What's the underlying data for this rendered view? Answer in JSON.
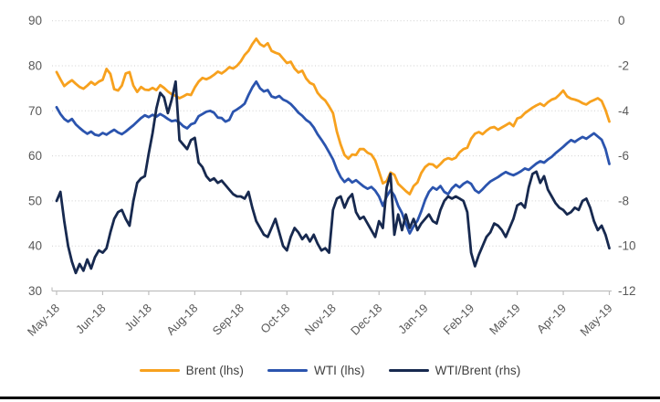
{
  "chart_data": {
    "type": "line",
    "title": "",
    "x_labels": [
      "May-18",
      "Jun-18",
      "Jul-18",
      "Aug-18",
      "Sep-18",
      "Oct-18",
      "Nov-18",
      "Dec-18",
      "Jan-19",
      "Feb-19",
      "Mar-19",
      "Apr-19",
      "May-19"
    ],
    "left_axis": {
      "ticks": [
        90,
        80,
        70,
        60,
        50,
        40,
        30
      ],
      "min": 30,
      "max": 90
    },
    "right_axis": {
      "ticks": [
        0,
        -2,
        -4,
        -6,
        -8,
        -10,
        -12
      ],
      "min": -12,
      "max": 0
    },
    "grid": "dotted-horizontal",
    "legend_position": "bottom",
    "colors": {
      "brent": "#F7A11E",
      "wti": "#2B54AE",
      "spread": "#17294F",
      "grid": "#cfcfcf",
      "axis_line": "#bfbfbf",
      "tick_text": "#595959",
      "bottom_rule": "#000000"
    },
    "series": [
      {
        "name": "Brent (lhs)",
        "axis": "left",
        "color": "#F7A11E",
        "values": [
          78.6,
          77.0,
          75.5,
          76.2,
          76.8,
          76.0,
          75.3,
          74.9,
          75.6,
          76.4,
          75.8,
          76.5,
          76.9,
          79.3,
          78.2,
          74.8,
          74.5,
          75.6,
          78.3,
          78.6,
          75.6,
          74.2,
          75.3,
          74.7,
          74.6,
          75.1,
          74.6,
          75.7,
          75.1,
          74.3,
          73.7,
          73.3,
          72.8,
          73.2,
          73.7,
          73.5,
          75.2,
          76.5,
          77.3,
          77.0,
          77.4,
          78.0,
          78.7,
          78.3,
          78.9,
          79.7,
          79.4,
          80.0,
          81.0,
          82.4,
          83.3,
          84.8,
          86.0,
          84.8,
          84.3,
          85.0,
          83.3,
          82.9,
          82.6,
          81.6,
          80.6,
          80.9,
          79.4,
          78.5,
          78.9,
          77.2,
          76.2,
          75.8,
          74.0,
          73.0,
          72.3,
          71.0,
          69.5,
          65.4,
          62.5,
          60.2,
          59.4,
          60.3,
          60.2,
          61.5,
          61.5,
          60.7,
          60.3,
          59.0,
          56.5,
          53.9,
          54.4,
          56.3,
          55.8,
          53.8,
          53.0,
          52.2,
          51.5,
          53.3,
          54.1,
          56.2,
          57.5,
          58.2,
          58.1,
          57.4,
          58.2,
          59.1,
          59.5,
          59.2,
          59.6,
          60.8,
          61.5,
          61.8,
          63.8,
          64.9,
          65.3,
          64.8,
          65.6,
          66.2,
          66.4,
          65.8,
          66.3,
          66.8,
          67.3,
          66.6,
          68.3,
          68.6,
          69.5,
          70.1,
          70.7,
          71.2,
          71.6,
          71.1,
          71.9,
          72.5,
          72.8,
          73.6,
          74.5,
          73.2,
          72.7,
          72.5,
          72.2,
          71.7,
          71.4,
          72.0,
          72.4,
          72.8,
          72.2,
          70.2,
          67.6
        ]
      },
      {
        "name": "WTI (lhs)",
        "axis": "left",
        "color": "#2B54AE",
        "values": [
          70.8,
          69.3,
          68.2,
          67.6,
          68.2,
          67.0,
          66.2,
          65.5,
          64.9,
          65.4,
          64.7,
          64.5,
          65.1,
          64.7,
          65.3,
          65.8,
          65.2,
          64.8,
          65.4,
          66.1,
          66.8,
          67.6,
          68.4,
          69.0,
          68.6,
          69.1,
          68.7,
          69.3,
          68.8,
          68.2,
          67.7,
          67.9,
          67.4,
          66.6,
          66.1,
          67.0,
          67.3,
          68.8,
          69.3,
          69.8,
          70.0,
          69.6,
          68.5,
          68.4,
          67.6,
          68.0,
          69.8,
          70.3,
          70.9,
          71.6,
          73.5,
          75.2,
          76.5,
          75.0,
          74.3,
          74.6,
          73.2,
          72.9,
          73.3,
          72.5,
          72.1,
          71.5,
          70.6,
          69.6,
          68.9,
          68.0,
          67.4,
          66.3,
          64.8,
          63.6,
          62.3,
          60.8,
          59.2,
          57.0,
          55.3,
          54.2,
          54.9,
          54.1,
          54.6,
          53.9,
          53.2,
          52.7,
          53.1,
          52.3,
          51.0,
          48.9,
          51.0,
          52.4,
          51.2,
          48.9,
          47.3,
          44.9,
          42.8,
          44.4,
          45.6,
          47.7,
          50.2,
          52.0,
          53.0,
          52.5,
          53.3,
          52.0,
          51.5,
          52.8,
          53.6,
          53.0,
          53.8,
          54.3,
          53.8,
          52.4,
          51.8,
          52.6,
          53.5,
          54.3,
          54.8,
          55.3,
          55.9,
          56.4,
          56.0,
          55.7,
          56.1,
          56.6,
          57.2,
          56.9,
          57.6,
          58.3,
          58.8,
          58.5,
          59.2,
          59.8,
          60.6,
          61.3,
          62.0,
          62.8,
          63.5,
          63.1,
          63.7,
          64.2,
          63.8,
          64.4,
          65.0,
          64.3,
          63.6,
          61.5,
          58.2
        ]
      },
      {
        "name": "WTI/Brent (rhs)",
        "axis": "right",
        "color": "#17294F",
        "values": [
          -8.0,
          -7.6,
          -8.9,
          -10.0,
          -10.7,
          -11.2,
          -10.8,
          -11.1,
          -10.6,
          -11.0,
          -10.5,
          -10.2,
          -10.3,
          -10.1,
          -9.4,
          -8.8,
          -8.5,
          -8.4,
          -8.8,
          -9.1,
          -8.0,
          -7.2,
          -7.0,
          -6.9,
          -5.9,
          -5.0,
          -3.9,
          -3.2,
          -3.4,
          -4.1,
          -3.5,
          -2.7,
          -5.3,
          -5.5,
          -5.7,
          -5.3,
          -5.2,
          -6.3,
          -6.5,
          -6.9,
          -7.1,
          -7.0,
          -7.2,
          -7.1,
          -7.3,
          -7.5,
          -7.7,
          -7.8,
          -7.8,
          -7.9,
          -7.6,
          -8.3,
          -8.9,
          -9.2,
          -9.5,
          -9.6,
          -9.2,
          -8.8,
          -9.4,
          -10.0,
          -10.2,
          -9.6,
          -9.2,
          -9.4,
          -9.7,
          -9.5,
          -9.8,
          -9.5,
          -9.9,
          -10.2,
          -10.1,
          -10.3,
          -8.4,
          -7.9,
          -7.8,
          -8.3,
          -7.9,
          -7.7,
          -8.5,
          -8.8,
          -8.7,
          -9.0,
          -9.3,
          -9.6,
          -8.9,
          -9.2,
          -7.4,
          -6.8,
          -9.5,
          -8.6,
          -9.3,
          -8.6,
          -9.2,
          -8.8,
          -9.3,
          -9.0,
          -8.8,
          -8.6,
          -8.9,
          -9.0,
          -8.4,
          -8.0,
          -7.8,
          -7.9,
          -7.8,
          -7.9,
          -8.0,
          -8.5,
          -10.3,
          -10.9,
          -10.4,
          -10.0,
          -9.6,
          -9.4,
          -9.0,
          -9.1,
          -9.3,
          -9.6,
          -9.2,
          -8.8,
          -8.2,
          -8.1,
          -8.3,
          -7.4,
          -6.8,
          -6.7,
          -7.2,
          -6.9,
          -7.5,
          -7.8,
          -8.1,
          -8.3,
          -8.4,
          -8.6,
          -8.5,
          -8.3,
          -8.4,
          -8.0,
          -7.9,
          -8.3,
          -8.9,
          -9.3,
          -9.1,
          -9.5,
          -10.1
        ]
      }
    ]
  },
  "legend": {
    "items": [
      {
        "label": "Brent (lhs)",
        "color": "#F7A11E"
      },
      {
        "label": "WTI (lhs)",
        "color": "#2B54AE"
      },
      {
        "label": "WTI/Brent (rhs)",
        "color": "#17294F"
      }
    ]
  }
}
